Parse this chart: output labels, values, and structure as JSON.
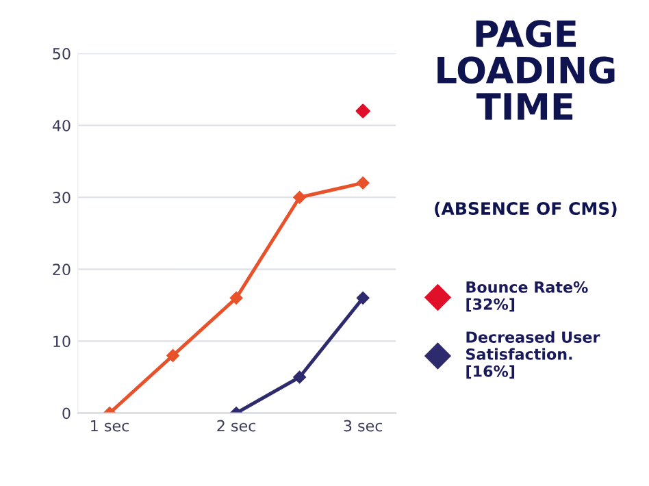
{
  "chart_data": {
    "type": "line",
    "title": "PAGE\nLOADING\nTIME",
    "subtitle": "(ABSENCE OF CMS)",
    "x": [
      1,
      1.5,
      2,
      2.5,
      3
    ],
    "series": [
      {
        "type": "scatter",
        "name": "Bounce Rate%\n[32%]",
        "color": "#e0102a",
        "x": [
          3
        ],
        "values": [
          42
        ]
      },
      {
        "color": "#e8522a",
        "values": [
          0,
          8,
          16,
          30,
          32
        ]
      },
      {
        "name": "Decreased User\nSatisfaction.\n[16%]",
        "color": "#2e2a6e",
        "x": [
          2,
          2.5,
          3
        ],
        "values": [
          0,
          5,
          16
        ]
      }
    ],
    "xlim": [
      0.75,
      3.26
    ],
    "xticks": [
      {
        "value": 1,
        "label": "1 sec"
      },
      {
        "value": 2,
        "label": "2 sec"
      },
      {
        "value": 3,
        "label": "3 sec"
      }
    ],
    "ylim": [
      0,
      50
    ],
    "yticks": [
      0,
      10,
      20,
      30,
      40,
      50
    ],
    "grid": "y",
    "legend": "right",
    "marker": "diamond",
    "line_style": "solid"
  }
}
